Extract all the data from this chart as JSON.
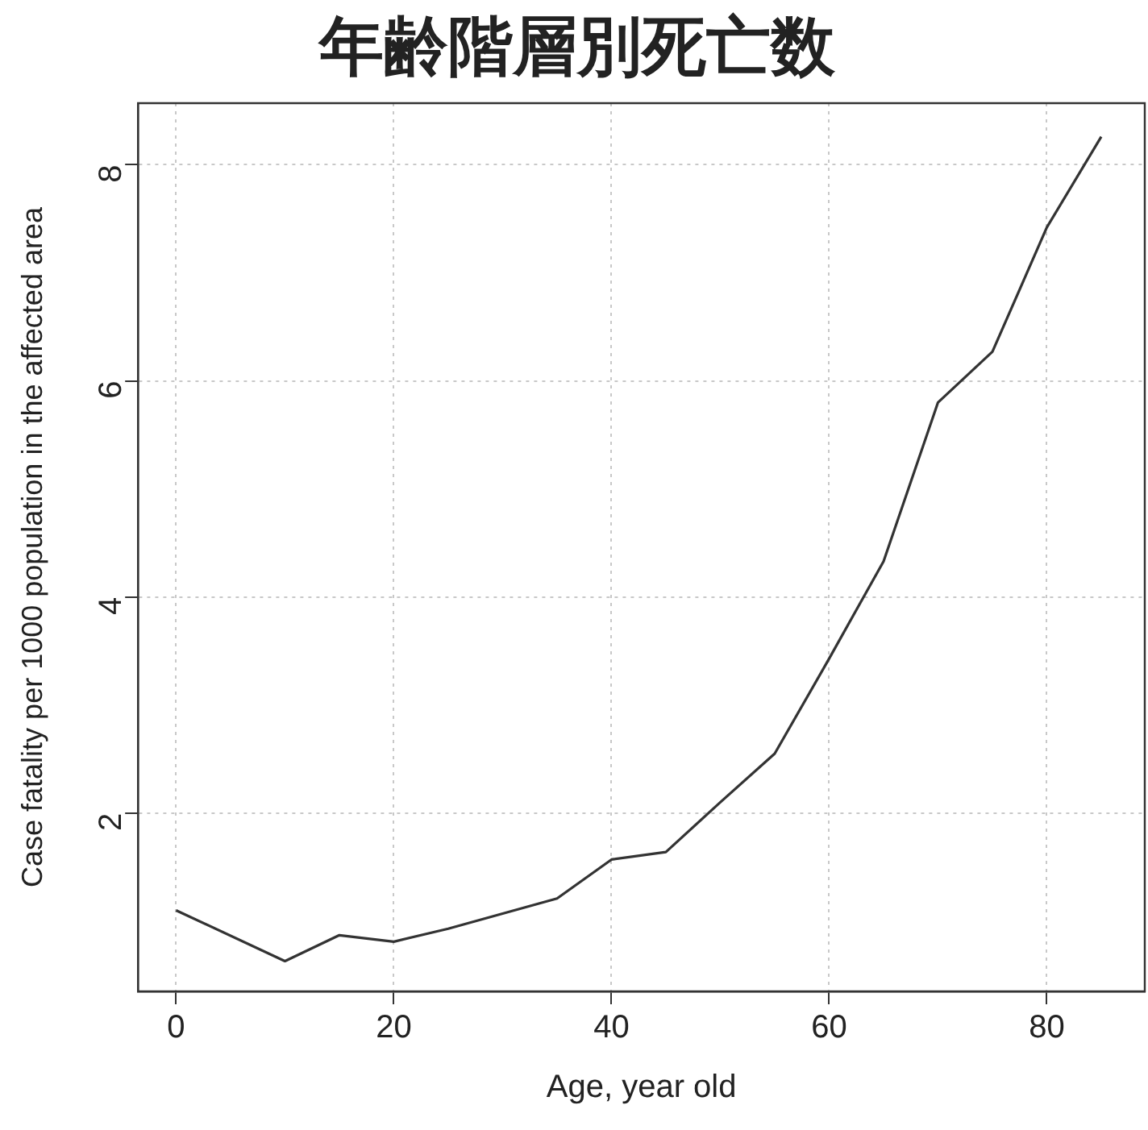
{
  "chart_data": {
    "type": "line",
    "title": "年齢階層別死亡数",
    "xlabel": "Age, year old",
    "ylabel": "Case fatality per 1000 population in the affected area",
    "x": [
      0,
      10,
      15,
      20,
      25,
      30,
      35,
      40,
      45,
      50,
      55,
      60,
      65,
      70,
      75,
      80,
      85
    ],
    "series": [
      {
        "color": "#333333",
        "values": [
          1.1,
          0.63,
          0.87,
          0.81,
          0.93,
          1.07,
          1.21,
          1.57,
          1.64,
          2.1,
          2.55,
          3.43,
          4.33,
          5.8,
          6.27,
          7.42,
          8.26
        ]
      }
    ],
    "xlim": [
      -3.5,
      89
    ],
    "ylim": [
      0.35,
      8.57
    ],
    "xticks": [
      0,
      20,
      40,
      60,
      80
    ],
    "yticks": [
      2,
      4,
      6,
      8
    ],
    "grid": true,
    "legend": false,
    "marker": "none",
    "line_style": "solid"
  }
}
